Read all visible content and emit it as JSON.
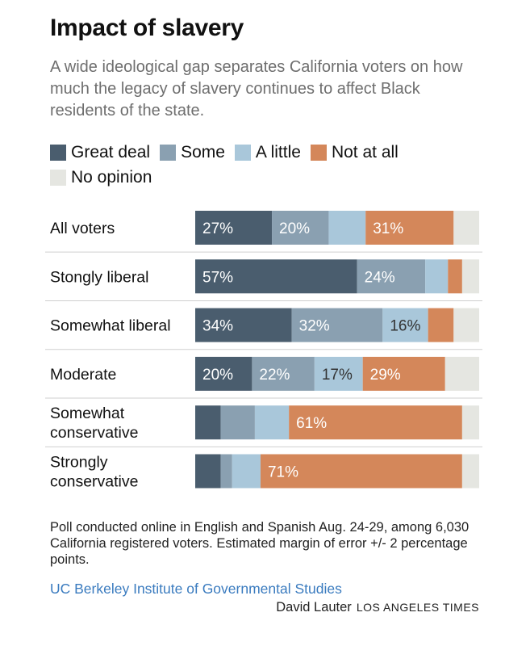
{
  "header": {
    "title": "Impact of slavery",
    "subtitle": "A wide ideological gap separates California voters on how much the legacy of slavery continues to affect Black residents of the state."
  },
  "legend": [
    {
      "label": "Great deal",
      "color": "#4a5d6e"
    },
    {
      "label": "Some",
      "color": "#8aa0b1"
    },
    {
      "label": "A little",
      "color": "#a9c7da"
    },
    {
      "label": "Not at all",
      "color": "#d4875a"
    },
    {
      "label": "No opinion",
      "color": "#e5e6e1"
    }
  ],
  "chart_data": {
    "type": "bar",
    "orientation": "horizontal",
    "stacked": true,
    "grid": false,
    "legend_position": "top",
    "categories": [
      "All voters",
      "Stongly liberal",
      "Somewhat liberal",
      "Moderate",
      "Somewhat conservative",
      "Strongly conservative"
    ],
    "category_lines": [
      [
        "All voters"
      ],
      [
        "Stongly liberal"
      ],
      [
        "Somewhat liberal"
      ],
      [
        "Moderate"
      ],
      [
        "Somewhat",
        "conservative"
      ],
      [
        "Strongly",
        "conservative"
      ]
    ],
    "series": [
      {
        "name": "Great deal",
        "color": "#4a5d6e",
        "values": [
          27,
          57,
          34,
          20,
          9,
          9
        ]
      },
      {
        "name": "Some",
        "color": "#8aa0b1",
        "values": [
          20,
          24,
          32,
          22,
          12,
          4
        ]
      },
      {
        "name": "A little",
        "color": "#a9c7da",
        "values": [
          13,
          8,
          16,
          17,
          12,
          10
        ]
      },
      {
        "name": "Not at all",
        "color": "#d4875a",
        "values": [
          31,
          5,
          9,
          29,
          61,
          71
        ]
      },
      {
        "name": "No opinion",
        "color": "#e5e6e1",
        "values": [
          9,
          6,
          9,
          12,
          6,
          6
        ]
      }
    ],
    "data_labels": [
      [
        "27%",
        "20%",
        "",
        "31%",
        ""
      ],
      [
        "57%",
        "24%",
        "",
        "",
        ""
      ],
      [
        "34%",
        "32%",
        "16%",
        "",
        ""
      ],
      [
        "20%",
        "22%",
        "17%",
        "29%",
        ""
      ],
      [
        "",
        "",
        "",
        "61%",
        ""
      ],
      [
        "",
        "",
        "",
        "71%",
        ""
      ]
    ],
    "label_colors": [
      "#ffffff",
      "#ffffff",
      "#333333",
      "#ffffff",
      "#ffffff"
    ],
    "xlim": [
      0,
      100
    ]
  },
  "footer": {
    "note": "Poll conducted online in English and Spanish Aug. 24-29, among 6,030 California registered voters. Estimated margin of error +/- 2 percentage points.",
    "source": "UC Berkeley Institute of Governmental Studies",
    "author": "David Lauter",
    "organization": "LOS ANGELES TIMES"
  }
}
